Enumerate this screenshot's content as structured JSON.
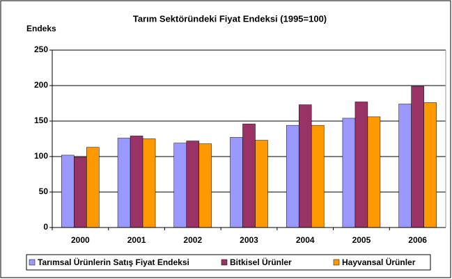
{
  "chart_data": {
    "type": "bar",
    "title": "Tarım Sektöründeki Fiyat Endeksi (1995=100)",
    "y_label": "Endeks",
    "categories": [
      "2000",
      "2001",
      "2002",
      "2003",
      "2004",
      "2005",
      "2006"
    ],
    "series": [
      {
        "name": "Tarımsal Ürünlerin Satış Fiyat Endeksi",
        "color": "#9999ff",
        "values": [
          102,
          126,
          119,
          127,
          144,
          154,
          174
        ]
      },
      {
        "name": "Bitkisel Ürünler",
        "color": "#993366",
        "values": [
          99,
          129,
          122,
          146,
          173,
          177,
          199
        ]
      },
      {
        "name": "Hayvansal Ürünler",
        "color": "#ff9900",
        "values": [
          113,
          125,
          118,
          123,
          144,
          156,
          176
        ]
      }
    ],
    "ylim": [
      0,
      250
    ],
    "yticks": [
      0,
      50,
      100,
      150,
      200,
      250
    ],
    "grid": true,
    "legend": "bottom"
  }
}
